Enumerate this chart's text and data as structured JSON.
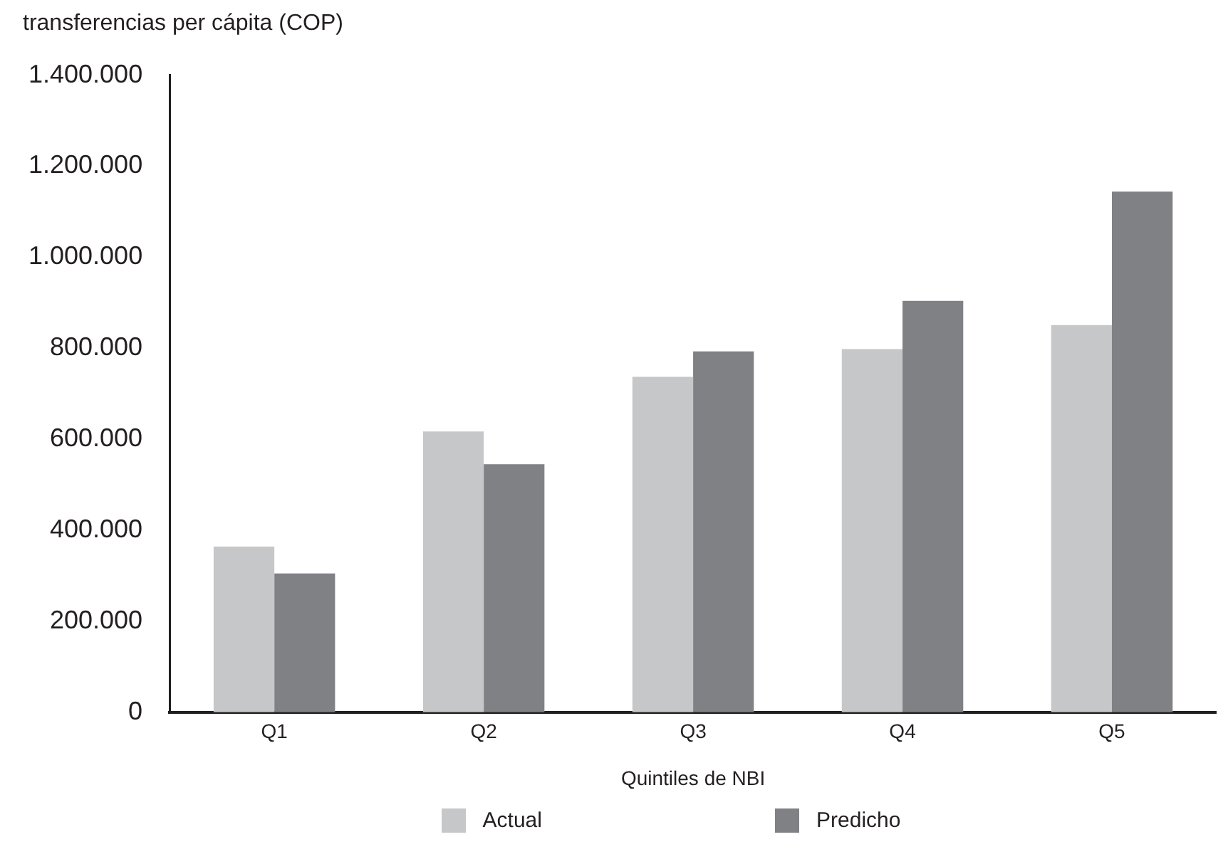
{
  "chart_data": {
    "type": "bar",
    "ylabel": "transferencias per cápita (COP)",
    "xlabel": "Quintiles de NBI",
    "categories": [
      "Q1",
      "Q2",
      "Q3",
      "Q4",
      "Q5"
    ],
    "series": [
      {
        "name": "Actual",
        "color": "#c6c7c9",
        "values": [
          364000,
          617000,
          737000,
          798000,
          851000
        ]
      },
      {
        "name": "Predicho",
        "color": "#808185",
        "values": [
          305000,
          545000,
          793000,
          904000,
          1144000
        ]
      }
    ],
    "ylim": [
      0,
      1400000
    ],
    "yticks": [
      {
        "value": 0,
        "label": "0"
      },
      {
        "value": 200000,
        "label": "200.000"
      },
      {
        "value": 400000,
        "label": "400.000"
      },
      {
        "value": 600000,
        "label": "600.000"
      },
      {
        "value": 800000,
        "label": "800.000"
      },
      {
        "value": 1000000,
        "label": "1.000.000"
      },
      {
        "value": 1200000,
        "label": "1.200.000"
      },
      {
        "value": 1400000,
        "label": "1.400.000"
      }
    ],
    "grid": false,
    "legend": "bottom"
  }
}
